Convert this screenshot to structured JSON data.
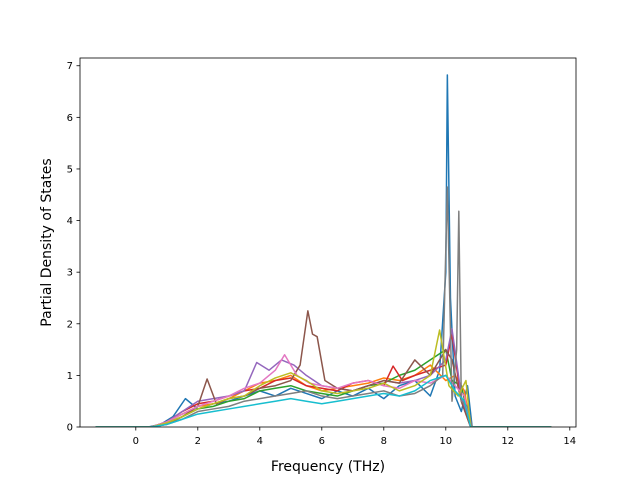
{
  "chart_data": {
    "type": "line",
    "title": "",
    "xlabel": "Frequency (THz)",
    "ylabel": "Partial Density of States",
    "xlim": [
      -1.8,
      14.2
    ],
    "ylim": [
      0,
      7.15
    ],
    "x_ticks": [
      0,
      2,
      4,
      6,
      8,
      10,
      12,
      14
    ],
    "y_ticks": [
      0,
      1,
      2,
      3,
      4,
      5,
      6,
      7
    ],
    "grid": false,
    "legend": "none",
    "series": [
      {
        "color": "#1f77b4",
        "x": [
          -1.3,
          0.4,
          0.8,
          1.2,
          1.6,
          2.0,
          2.5,
          3.0,
          3.5,
          4.0,
          4.5,
          5.0,
          5.5,
          6.0,
          6.5,
          7.0,
          7.5,
          8.0,
          8.5,
          9.0,
          9.5,
          9.8,
          10.0,
          10.05,
          10.15,
          10.3,
          10.5,
          10.7,
          10.85,
          13.4
        ],
        "y": [
          0,
          0,
          0.05,
          0.2,
          0.55,
          0.35,
          0.45,
          0.5,
          0.6,
          0.7,
          0.6,
          0.75,
          0.65,
          0.55,
          0.7,
          0.6,
          0.75,
          0.55,
          0.8,
          0.9,
          0.6,
          1.1,
          3.0,
          6.82,
          2.5,
          0.6,
          0.3,
          0.8,
          0,
          0
        ]
      },
      {
        "color": "#ff7f0e",
        "x": [
          -1.3,
          0.5,
          1.0,
          1.5,
          2.0,
          2.5,
          3.0,
          3.5,
          4.0,
          4.5,
          5.0,
          5.5,
          6.0,
          6.5,
          7.0,
          7.5,
          8.0,
          8.5,
          9.0,
          9.5,
          10.0,
          10.3,
          10.6,
          10.8,
          13.4
        ],
        "y": [
          0,
          0,
          0.1,
          0.25,
          0.4,
          0.45,
          0.55,
          0.7,
          0.85,
          0.9,
          1.0,
          0.8,
          0.7,
          0.75,
          0.8,
          0.85,
          0.95,
          0.9,
          1.0,
          1.2,
          0.9,
          1.0,
          0.7,
          0,
          0
        ]
      },
      {
        "color": "#2ca02c",
        "x": [
          -1.3,
          0.5,
          1.0,
          1.5,
          2.0,
          2.5,
          3.0,
          3.5,
          4.0,
          4.5,
          5.0,
          5.5,
          6.0,
          6.5,
          7.0,
          7.5,
          8.0,
          8.5,
          9.0,
          9.5,
          10.0,
          10.2,
          10.5,
          10.8,
          13.4
        ],
        "y": [
          0,
          0,
          0.08,
          0.2,
          0.35,
          0.4,
          0.5,
          0.55,
          0.7,
          0.75,
          0.8,
          0.7,
          0.65,
          0.6,
          0.7,
          0.8,
          0.85,
          1.0,
          1.1,
          1.3,
          1.5,
          0.9,
          0.8,
          0,
          0
        ]
      },
      {
        "color": "#d62728",
        "x": [
          -1.3,
          0.5,
          1.0,
          1.5,
          2.0,
          2.5,
          3.0,
          3.5,
          4.0,
          4.5,
          5.0,
          5.5,
          6.0,
          6.5,
          7.0,
          7.5,
          8.0,
          8.3,
          8.6,
          9.0,
          9.5,
          10.0,
          10.2,
          10.5,
          10.8,
          13.4
        ],
        "y": [
          0,
          0,
          0.1,
          0.3,
          0.45,
          0.5,
          0.6,
          0.7,
          0.75,
          0.9,
          0.95,
          0.8,
          0.75,
          0.7,
          0.85,
          0.9,
          0.8,
          1.18,
          0.9,
          1.0,
          1.1,
          1.2,
          1.8,
          0.5,
          0,
          0
        ]
      },
      {
        "color": "#9467bd",
        "x": [
          -1.3,
          0.5,
          1.0,
          1.5,
          2.0,
          2.5,
          3.0,
          3.5,
          3.9,
          4.3,
          4.7,
          5.1,
          5.5,
          6.0,
          6.5,
          7.0,
          7.5,
          8.0,
          8.5,
          9.0,
          9.5,
          10.0,
          10.2,
          10.5,
          10.8,
          13.4
        ],
        "y": [
          0,
          0,
          0.1,
          0.3,
          0.5,
          0.55,
          0.6,
          0.7,
          1.25,
          1.1,
          1.3,
          1.2,
          1.0,
          0.8,
          0.75,
          0.7,
          0.8,
          0.9,
          0.85,
          0.9,
          1.0,
          1.3,
          1.9,
          0.6,
          0,
          0
        ]
      },
      {
        "color": "#8c564b",
        "x": [
          -1.3,
          0.5,
          1.0,
          1.5,
          2.0,
          2.3,
          2.6,
          3.0,
          3.5,
          4.0,
          4.5,
          5.0,
          5.3,
          5.55,
          5.7,
          5.85,
          6.1,
          6.5,
          7.0,
          7.5,
          8.0,
          8.5,
          9.0,
          9.5,
          10.0,
          10.2,
          10.5,
          10.8,
          13.4
        ],
        "y": [
          0,
          0,
          0.05,
          0.2,
          0.4,
          0.93,
          0.45,
          0.55,
          0.6,
          0.75,
          0.8,
          0.9,
          1.2,
          2.25,
          1.8,
          1.75,
          0.9,
          0.75,
          0.7,
          0.8,
          0.9,
          0.85,
          1.3,
          1.0,
          1.5,
          1.3,
          0.5,
          0,
          0
        ]
      },
      {
        "color": "#e377c2",
        "x": [
          -1.3,
          0.5,
          1.0,
          1.5,
          2.0,
          2.5,
          3.0,
          3.5,
          4.0,
          4.5,
          4.8,
          5.2,
          5.6,
          6.0,
          6.5,
          7.0,
          7.5,
          8.0,
          8.5,
          9.0,
          9.5,
          10.0,
          10.3,
          10.6,
          10.8,
          13.4
        ],
        "y": [
          0,
          0,
          0.1,
          0.25,
          0.4,
          0.5,
          0.6,
          0.75,
          0.85,
          1.1,
          1.4,
          1.0,
          0.85,
          0.8,
          0.75,
          0.85,
          0.9,
          0.8,
          0.75,
          0.9,
          0.85,
          1.0,
          0.8,
          0.6,
          0,
          0
        ]
      },
      {
        "color": "#7f7f7f",
        "x": [
          -1.3,
          0.5,
          1.0,
          1.5,
          2.0,
          2.5,
          3.0,
          3.5,
          4.0,
          4.5,
          5.0,
          5.5,
          6.0,
          6.5,
          7.0,
          7.5,
          8.0,
          8.5,
          9.0,
          9.5,
          9.9,
          10.05,
          10.2,
          10.35,
          10.42,
          10.5,
          10.7,
          10.85,
          13.4
        ],
        "y": [
          0,
          0,
          0.05,
          0.15,
          0.3,
          0.35,
          0.4,
          0.5,
          0.55,
          0.6,
          0.65,
          0.7,
          0.6,
          0.55,
          0.6,
          0.65,
          0.7,
          0.6,
          0.65,
          0.8,
          1.0,
          4.65,
          0.5,
          1.5,
          4.18,
          0.5,
          0.4,
          0,
          0
        ]
      },
      {
        "color": "#bcbd22",
        "x": [
          -1.3,
          0.5,
          1.0,
          1.5,
          2.0,
          2.5,
          3.0,
          3.5,
          4.0,
          4.5,
          5.0,
          5.5,
          6.0,
          6.5,
          7.0,
          7.5,
          8.0,
          8.5,
          9.0,
          9.5,
          9.8,
          10.1,
          10.4,
          10.65,
          10.8,
          13.4
        ],
        "y": [
          0,
          0,
          0.08,
          0.2,
          0.35,
          0.45,
          0.55,
          0.6,
          0.8,
          0.95,
          1.05,
          0.9,
          0.7,
          0.65,
          0.7,
          0.75,
          0.85,
          0.7,
          0.8,
          1.0,
          1.88,
          0.8,
          0.6,
          0.9,
          0,
          0
        ]
      },
      {
        "color": "#17becf",
        "x": [
          -1.3,
          0.5,
          1.0,
          1.5,
          2.0,
          2.5,
          3.0,
          3.5,
          4.0,
          4.5,
          5.0,
          5.5,
          6.0,
          6.5,
          7.0,
          7.5,
          8.0,
          8.5,
          9.0,
          9.5,
          10.0,
          10.3,
          10.6,
          10.8,
          13.4
        ],
        "y": [
          0,
          0,
          0.05,
          0.15,
          0.25,
          0.3,
          0.35,
          0.4,
          0.45,
          0.5,
          0.55,
          0.5,
          0.45,
          0.5,
          0.55,
          0.6,
          0.65,
          0.6,
          0.7,
          0.9,
          1.0,
          0.7,
          0.5,
          0,
          0
        ]
      }
    ]
  }
}
